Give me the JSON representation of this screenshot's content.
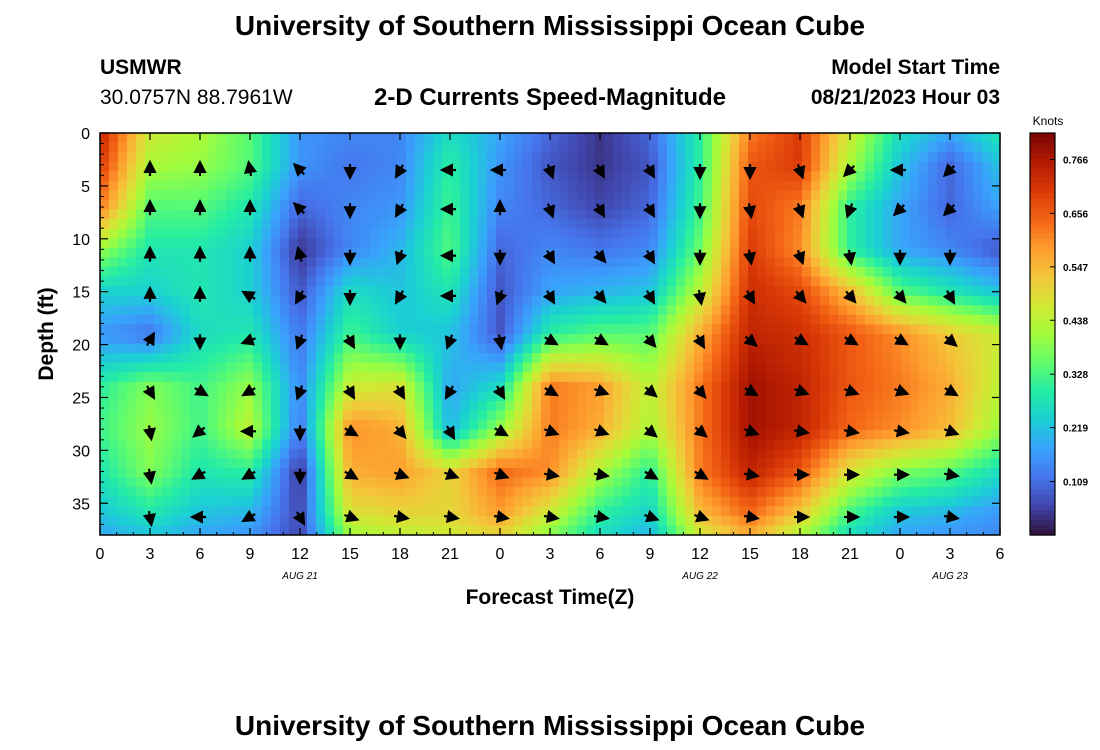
{
  "header": {
    "title": "University of Southern Mississippi Ocean Cube",
    "station": "USMWR",
    "coords": "30.0757N  88.7961W",
    "chart_title": "2-D Currents Speed-Magnitude",
    "model_start_label": "Model Start Time",
    "model_start_value": "08/21/2023 Hour 03"
  },
  "footer": {
    "title": "University of Southern Mississippi Ocean Cube"
  },
  "chart_data": {
    "type": "heatmap",
    "title": "2-D Currents Speed-Magnitude",
    "xlabel": "Forecast Time(Z)",
    "ylabel": "Depth (ft)",
    "x_ticks": [
      "0",
      "3",
      "6",
      "9",
      "12",
      "15",
      "18",
      "21",
      "0",
      "3",
      "6",
      "9",
      "12",
      "15",
      "18",
      "21",
      "0",
      "3",
      "6"
    ],
    "x_hours_range": [
      0,
      54
    ],
    "date_labels": [
      {
        "hour": 12,
        "text": "AUG 21"
      },
      {
        "hour": 36,
        "text": "AUG 22"
      },
      {
        "hour": 51,
        "text": "AUG 23"
      }
    ],
    "y_ticks": [
      0,
      5,
      10,
      15,
      20,
      25,
      30,
      35
    ],
    "ylim": [
      0,
      38
    ],
    "y_inverted": true,
    "colorbar": {
      "label": "Knots",
      "ticks": [
        "0.766",
        "0.656",
        "0.547",
        "0.438",
        "0.328",
        "0.219",
        "0.109"
      ],
      "range": [
        0,
        0.82
      ],
      "colors": [
        "#30123b",
        "#4145ab",
        "#4675ed",
        "#39a2fc",
        "#1bcfd4",
        "#24eca6",
        "#61fc6c",
        "#a4fc3b",
        "#d1e834",
        "#f3c63a",
        "#fe9b2d",
        "#f36315",
        "#d93806",
        "#b11901",
        "#7a0403"
      ]
    },
    "speed_grid_knots": {
      "depths_ft": [
        0,
        3,
        7,
        11,
        15,
        19,
        24,
        28,
        32,
        36,
        38
      ],
      "hours": [
        0,
        3,
        6,
        9,
        12,
        15,
        18,
        21,
        24,
        27,
        30,
        33,
        36,
        39,
        42,
        45,
        48,
        51,
        54
      ],
      "values": [
        [
          0.74,
          0.46,
          0.42,
          0.34,
          0.16,
          0.14,
          0.14,
          0.26,
          0.18,
          0.1,
          0.04,
          0.1,
          0.3,
          0.62,
          0.7,
          0.46,
          0.26,
          0.18,
          0.28
        ],
        [
          0.7,
          0.42,
          0.4,
          0.34,
          0.16,
          0.12,
          0.14,
          0.3,
          0.16,
          0.08,
          0.04,
          0.08,
          0.3,
          0.66,
          0.7,
          0.42,
          0.22,
          0.1,
          0.22
        ],
        [
          0.62,
          0.34,
          0.34,
          0.28,
          0.1,
          0.14,
          0.16,
          0.32,
          0.14,
          0.1,
          0.06,
          0.1,
          0.32,
          0.68,
          0.62,
          0.3,
          0.18,
          0.1,
          0.18
        ],
        [
          0.4,
          0.28,
          0.28,
          0.24,
          0.04,
          0.14,
          0.2,
          0.34,
          0.1,
          0.14,
          0.12,
          0.14,
          0.36,
          0.7,
          0.6,
          0.3,
          0.18,
          0.14,
          0.08
        ],
        [
          0.24,
          0.24,
          0.28,
          0.24,
          0.08,
          0.26,
          0.22,
          0.28,
          0.08,
          0.18,
          0.2,
          0.22,
          0.44,
          0.72,
          0.68,
          0.54,
          0.34,
          0.28,
          0.22
        ],
        [
          0.16,
          0.12,
          0.26,
          0.28,
          0.12,
          0.32,
          0.24,
          0.22,
          0.08,
          0.3,
          0.34,
          0.34,
          0.56,
          0.74,
          0.72,
          0.66,
          0.6,
          0.52,
          0.46
        ],
        [
          0.3,
          0.38,
          0.32,
          0.4,
          0.14,
          0.46,
          0.48,
          0.18,
          0.26,
          0.62,
          0.58,
          0.44,
          0.62,
          0.78,
          0.74,
          0.66,
          0.62,
          0.56,
          0.44
        ],
        [
          0.32,
          0.4,
          0.32,
          0.44,
          0.12,
          0.6,
          0.56,
          0.2,
          0.4,
          0.62,
          0.56,
          0.42,
          0.62,
          0.78,
          0.74,
          0.64,
          0.6,
          0.54,
          0.4
        ],
        [
          0.28,
          0.38,
          0.28,
          0.3,
          0.04,
          0.56,
          0.58,
          0.5,
          0.64,
          0.6,
          0.42,
          0.3,
          0.62,
          0.74,
          0.66,
          0.48,
          0.38,
          0.34,
          0.26
        ],
        [
          0.22,
          0.28,
          0.22,
          0.2,
          0.06,
          0.48,
          0.5,
          0.5,
          0.58,
          0.46,
          0.3,
          0.24,
          0.54,
          0.64,
          0.52,
          0.32,
          0.22,
          0.2,
          0.16
        ],
        [
          0.18,
          0.22,
          0.18,
          0.16,
          0.06,
          0.4,
          0.44,
          0.46,
          0.5,
          0.38,
          0.26,
          0.2,
          0.46,
          0.56,
          0.42,
          0.26,
          0.18,
          0.16,
          0.14
        ]
      ]
    },
    "current_direction_deg": {
      "depths_ft": [
        3.5,
        7.2,
        11.6,
        15.4,
        19.6,
        24.4,
        28.2,
        32.3,
        36.3
      ],
      "hours": [
        3,
        6,
        9,
        12,
        15,
        18,
        21,
        24,
        27,
        30,
        33,
        36,
        39,
        42,
        45,
        48,
        51
      ],
      "values": [
        [
          0,
          0,
          350,
          315,
          180,
          210,
          270,
          270,
          160,
          150,
          150,
          180,
          180,
          160,
          225,
          270,
          225
        ],
        [
          0,
          0,
          0,
          315,
          180,
          210,
          270,
          0,
          160,
          150,
          150,
          180,
          170,
          160,
          200,
          225,
          225
        ],
        [
          0,
          0,
          0,
          345,
          180,
          200,
          270,
          180,
          150,
          140,
          150,
          180,
          170,
          160,
          170,
          180,
          180
        ],
        [
          0,
          0,
          300,
          210,
          180,
          210,
          270,
          200,
          150,
          140,
          150,
          170,
          150,
          140,
          140,
          140,
          150
        ],
        [
          30,
          180,
          250,
          200,
          150,
          180,
          200,
          170,
          120,
          120,
          140,
          150,
          130,
          120,
          120,
          120,
          130
        ],
        [
          150,
          120,
          240,
          200,
          150,
          150,
          210,
          150,
          120,
          110,
          130,
          140,
          120,
          110,
          110,
          110,
          120
        ],
        [
          170,
          230,
          270,
          180,
          120,
          140,
          150,
          120,
          110,
          110,
          130,
          130,
          110,
          100,
          100,
          100,
          110
        ],
        [
          170,
          240,
          240,
          180,
          120,
          110,
          110,
          110,
          100,
          100,
          120,
          120,
          100,
          90,
          90,
          90,
          100
        ],
        [
          170,
          270,
          240,
          150,
          110,
          100,
          100,
          100,
          100,
          100,
          110,
          110,
          100,
          90,
          90,
          90,
          100
        ]
      ]
    }
  }
}
